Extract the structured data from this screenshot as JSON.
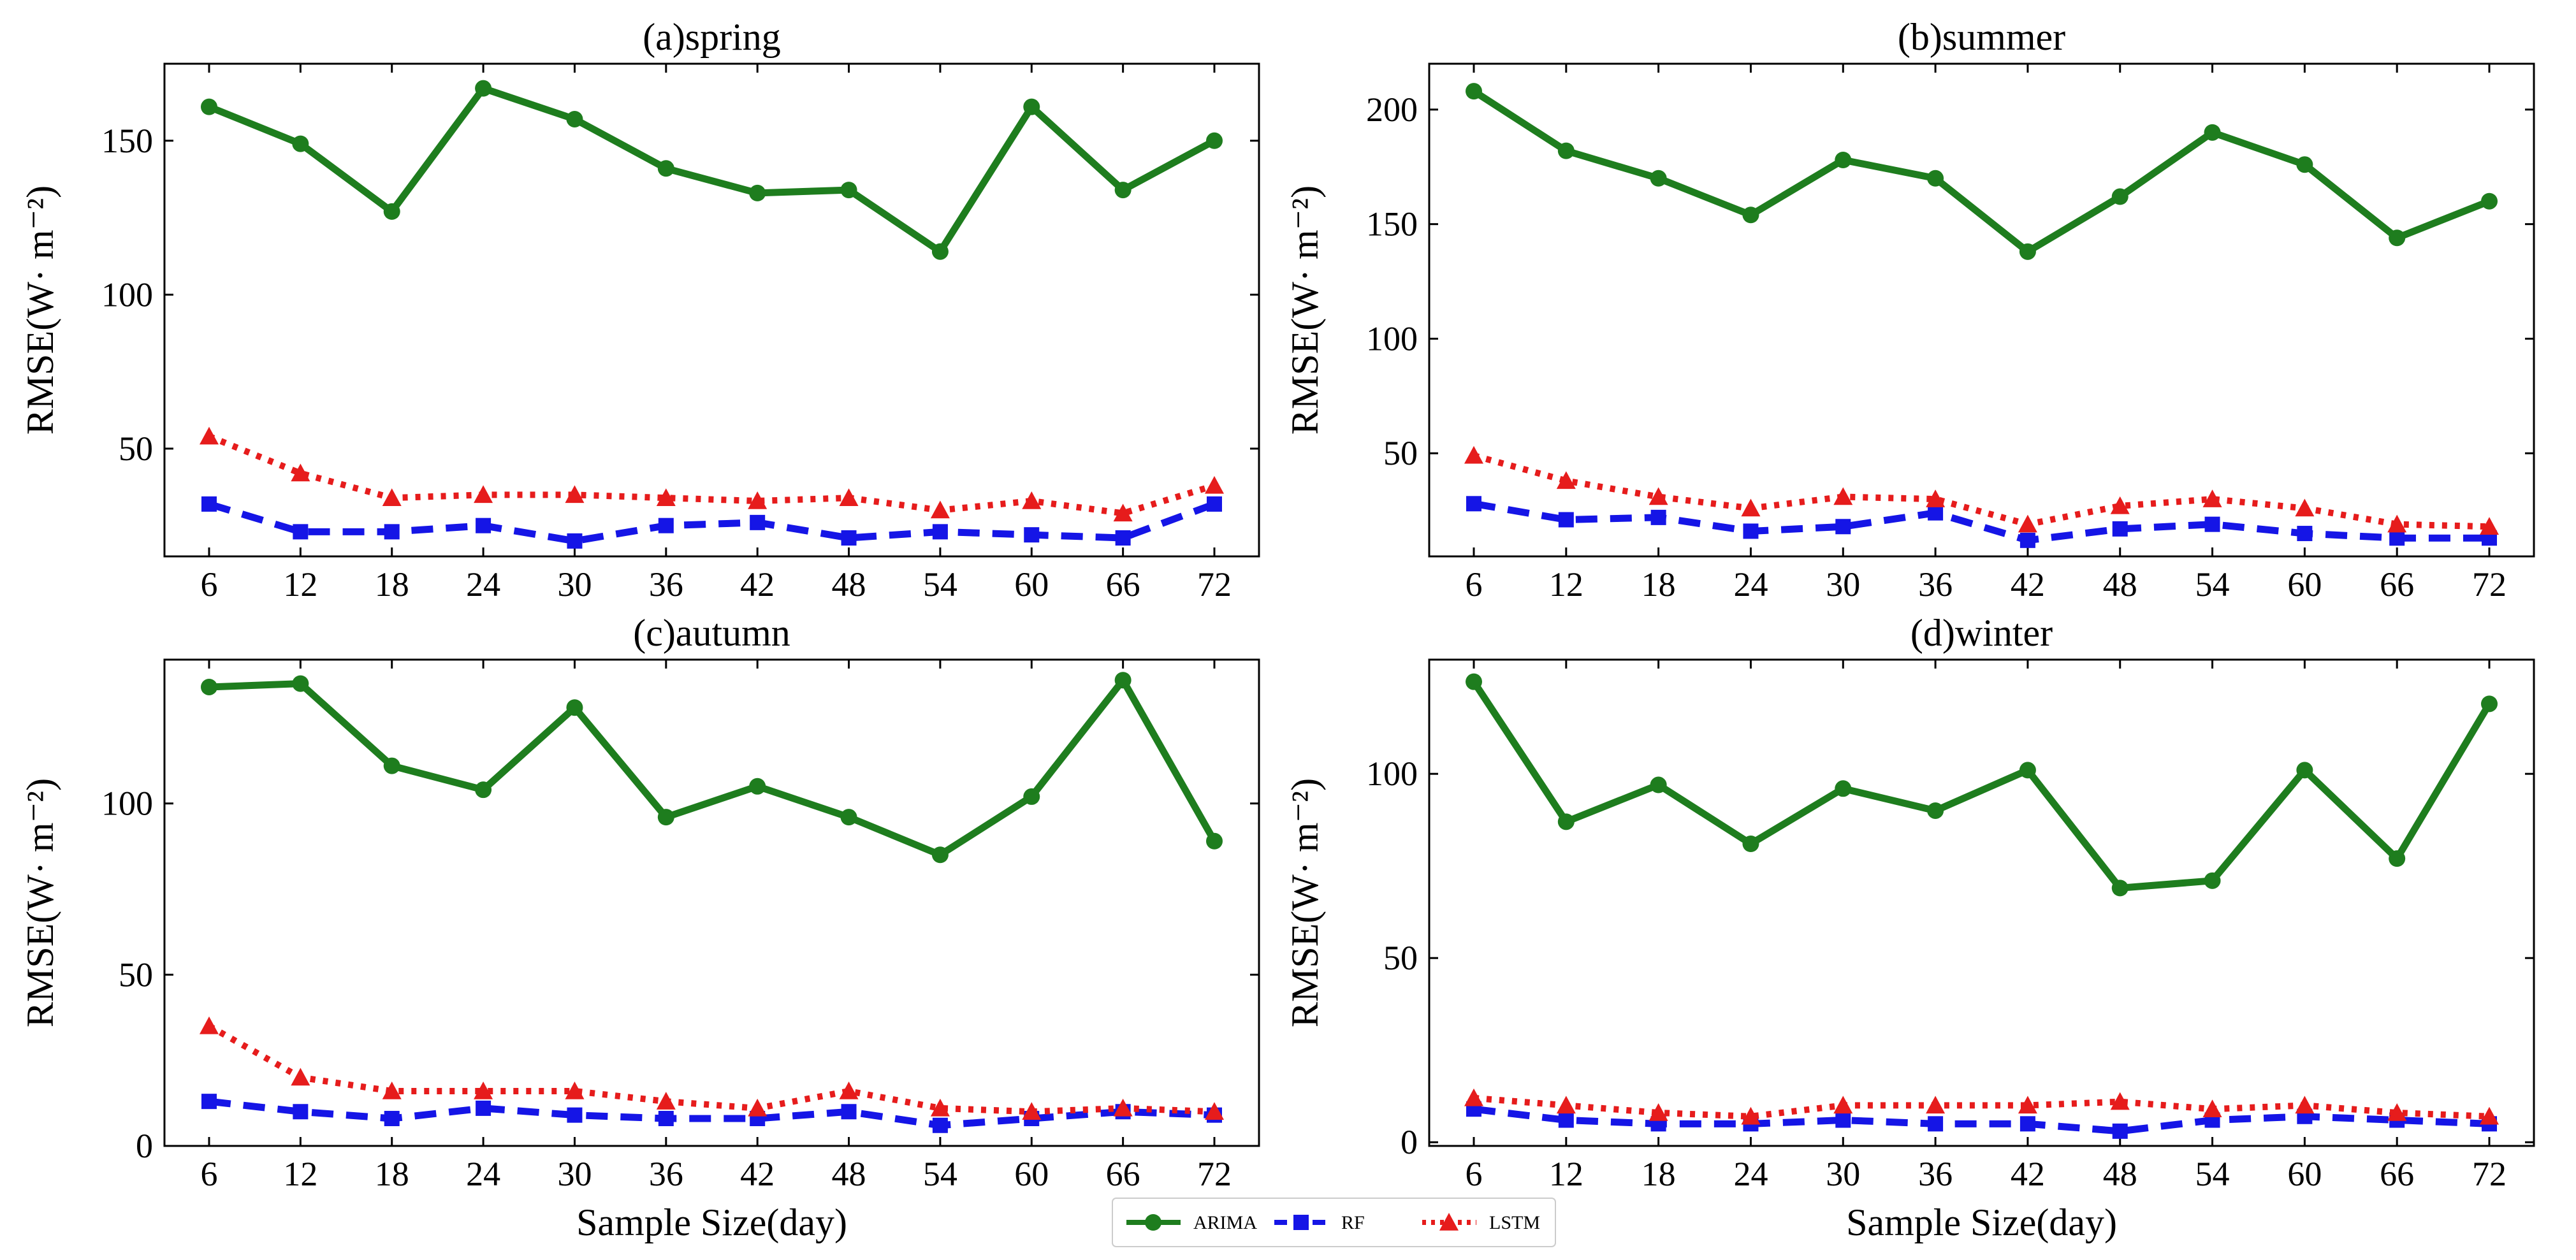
{
  "colors": {
    "arima": "#1e7d1e",
    "rf": "#1515e6",
    "lstm": "#e61c1c",
    "axis": "#000000",
    "background": "#ffffff"
  },
  "legend": {
    "items": [
      {
        "key": "arima",
        "label": "ARIMA"
      },
      {
        "key": "rf",
        "label": "RF"
      },
      {
        "key": "lstm",
        "label": "LSTM"
      }
    ]
  },
  "chart_data": [
    {
      "type": "line",
      "title": "(a)spring",
      "xlabel": "",
      "ylabel": "RMSE(W· m⁻²)",
      "x": [
        6,
        12,
        18,
        24,
        30,
        36,
        42,
        48,
        54,
        60,
        66,
        72
      ],
      "xticks": [
        "6",
        "12",
        "18",
        "24",
        "30",
        "36",
        "42",
        "48",
        "54",
        "60",
        "66",
        "72"
      ],
      "ylim": [
        15,
        175
      ],
      "yticks": [
        50,
        100,
        150
      ],
      "series": [
        {
          "name": "ARIMA",
          "values": [
            161,
            149,
            127,
            167,
            157,
            141,
            133,
            134,
            114,
            161,
            134,
            150
          ]
        },
        {
          "name": "RF",
          "values": [
            32,
            23,
            23,
            25,
            20,
            25,
            26,
            21,
            23,
            22,
            21,
            32
          ]
        },
        {
          "name": "LSTM",
          "values": [
            54,
            42,
            34,
            35,
            35,
            34,
            33,
            34,
            30,
            33,
            29,
            38
          ]
        }
      ]
    },
    {
      "type": "line",
      "title": "(b)summer",
      "xlabel": "",
      "ylabel": "RMSE(W· m⁻²)",
      "x": [
        6,
        12,
        18,
        24,
        30,
        36,
        42,
        48,
        54,
        60,
        66,
        72
      ],
      "xticks": [
        "6",
        "12",
        "18",
        "24",
        "30",
        "36",
        "42",
        "48",
        "54",
        "60",
        "66",
        "72"
      ],
      "ylim": [
        5,
        220
      ],
      "yticks": [
        50,
        100,
        150,
        200
      ],
      "series": [
        {
          "name": "ARIMA",
          "values": [
            208,
            182,
            170,
            154,
            178,
            170,
            138,
            162,
            190,
            176,
            144,
            160
          ]
        },
        {
          "name": "RF",
          "values": [
            28,
            21,
            22,
            16,
            18,
            24,
            12,
            17,
            19,
            15,
            13,
            13
          ]
        },
        {
          "name": "LSTM",
          "values": [
            49,
            38,
            31,
            26,
            31,
            30,
            19,
            27,
            30,
            26,
            19,
            18
          ]
        }
      ]
    },
    {
      "type": "line",
      "title": "(c)autumn",
      "xlabel": "Sample Size(day)",
      "ylabel": "RMSE(W· m⁻²)",
      "x": [
        6,
        12,
        18,
        24,
        30,
        36,
        42,
        48,
        54,
        60,
        66,
        72
      ],
      "xticks": [
        "6",
        "12",
        "18",
        "24",
        "30",
        "36",
        "42",
        "48",
        "54",
        "60",
        "66",
        "72"
      ],
      "ylim": [
        0,
        142
      ],
      "yticks": [
        0,
        50,
        100
      ],
      "series": [
        {
          "name": "ARIMA",
          "values": [
            134,
            135,
            111,
            104,
            128,
            96,
            105,
            96,
            85,
            102,
            136,
            89
          ]
        },
        {
          "name": "RF",
          "values": [
            13,
            10,
            8,
            11,
            9,
            8,
            8,
            10,
            6,
            8,
            10,
            9
          ]
        },
        {
          "name": "LSTM",
          "values": [
            35,
            20,
            16,
            16,
            16,
            13,
            11,
            16,
            11,
            10,
            11,
            10
          ]
        }
      ]
    },
    {
      "type": "line",
      "title": "(d)winter",
      "xlabel": "Sample Size(day)",
      "ylabel": "RMSE(W· m⁻²)",
      "x": [
        6,
        12,
        18,
        24,
        30,
        36,
        42,
        48,
        54,
        60,
        66,
        72
      ],
      "xticks": [
        "6",
        "12",
        "18",
        "24",
        "30",
        "36",
        "42",
        "48",
        "54",
        "60",
        "66",
        "72"
      ],
      "ylim": [
        -1,
        131
      ],
      "yticks": [
        0,
        50,
        100
      ],
      "series": [
        {
          "name": "ARIMA",
          "values": [
            125,
            87,
            97,
            81,
            96,
            90,
            101,
            69,
            71,
            101,
            77,
            119
          ]
        },
        {
          "name": "RF",
          "values": [
            9,
            6,
            5,
            5,
            6,
            5,
            5,
            3,
            6,
            7,
            6,
            5
          ]
        },
        {
          "name": "LSTM",
          "values": [
            12,
            10,
            8,
            7,
            10,
            10,
            10,
            11,
            9,
            10,
            8,
            7
          ]
        }
      ]
    }
  ]
}
